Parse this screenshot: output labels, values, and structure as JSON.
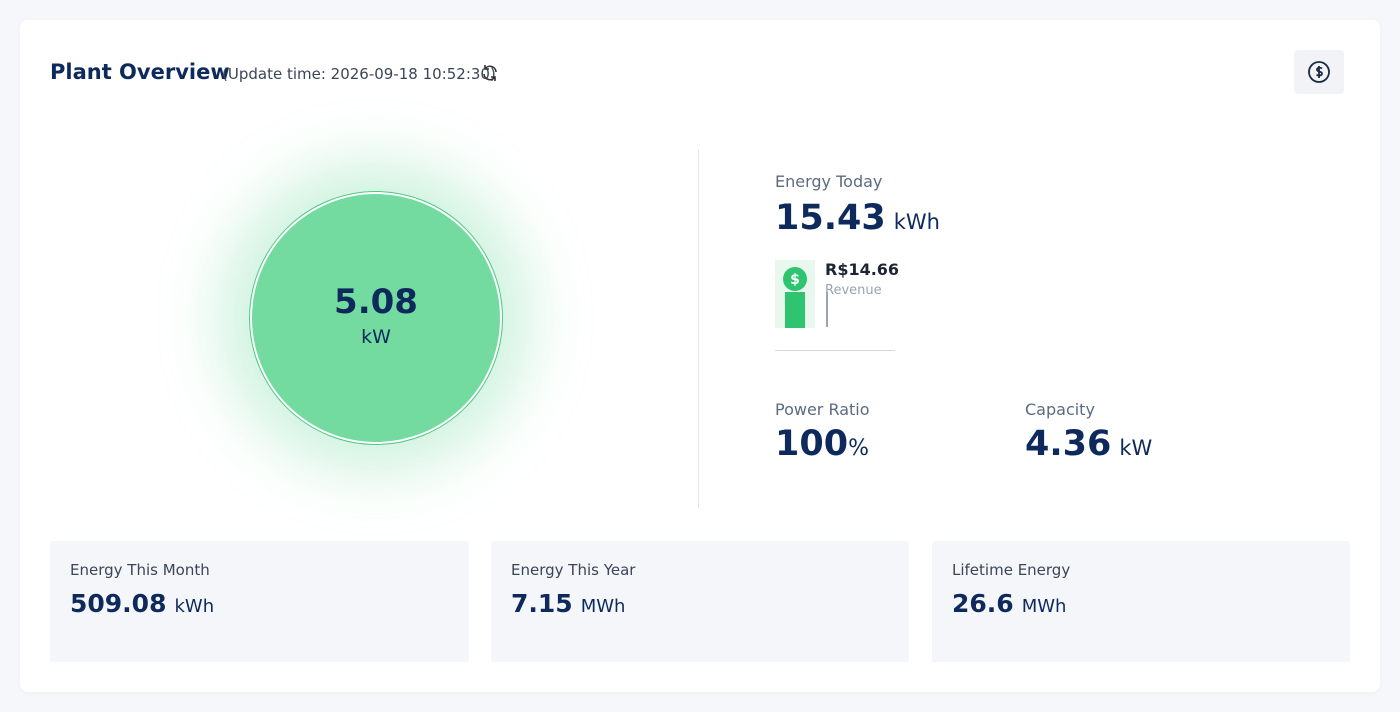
{
  "header": {
    "title": "Plant Overview",
    "update_time": "(Update time: 2026-09-18 10:52:30)"
  },
  "power": {
    "value": "5.08",
    "unit": "kW"
  },
  "energy_today": {
    "label": "Energy Today",
    "value": "15.43",
    "unit": "kWh",
    "revenue": "R$14.66",
    "revenue_label": "Revenue"
  },
  "power_ratio": {
    "label": "Power Ratio",
    "value": "100",
    "unit": "%"
  },
  "capacity": {
    "label": "Capacity",
    "value": "4.36",
    "unit": "kW"
  },
  "cards": [
    {
      "label": "Energy This Month",
      "value": "509.08",
      "unit": "kWh"
    },
    {
      "label": "Energy This Year",
      "value": "7.15",
      "unit": "MWh"
    },
    {
      "label": "Lifetime Energy",
      "value": "26.6",
      "unit": "MWh"
    }
  ]
}
